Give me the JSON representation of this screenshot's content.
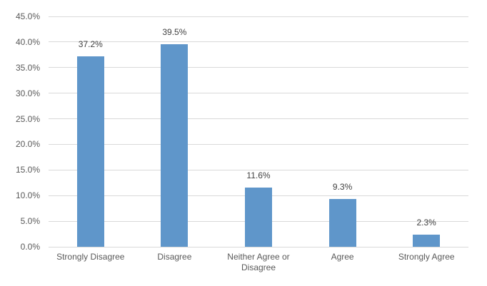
{
  "chart_data": {
    "type": "bar",
    "title": "",
    "xlabel": "",
    "ylabel": "",
    "categories": [
      "Strongly Disagree",
      "Disagree",
      "Neither Agree or Disagree",
      "Agree",
      "Strongly Agree"
    ],
    "values": [
      37.2,
      39.5,
      11.6,
      9.3,
      2.3
    ],
    "data_labels": [
      "37.2%",
      "39.5%",
      "11.6%",
      "9.3%",
      "2.3%"
    ],
    "ylim": [
      0,
      45
    ],
    "y_tick_step": 5,
    "y_tick_labels": [
      "0.0%",
      "5.0%",
      "10.0%",
      "15.0%",
      "20.0%",
      "25.0%",
      "30.0%",
      "35.0%",
      "40.0%",
      "45.0%"
    ],
    "grid": true,
    "legend": false,
    "colors": {
      "bar": "#5F96CA",
      "gridline": "#D9D9D9",
      "axis_line": "#D9D9D9",
      "axis_text": "#595959",
      "data_label_text": "#404040",
      "background": "#FFFFFF"
    }
  }
}
